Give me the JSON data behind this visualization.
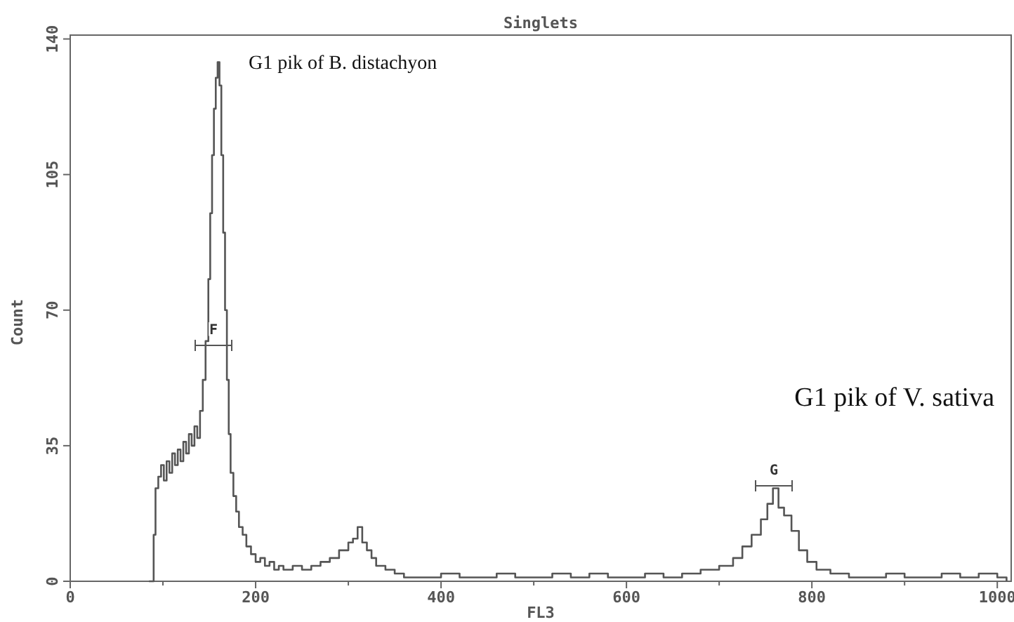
{
  "chart_data": {
    "type": "step",
    "title": "Singlets",
    "xlabel": "FL3",
    "ylabel": "Count",
    "xlim": [
      0,
      1015
    ],
    "ylim": [
      0,
      141
    ],
    "xticks": [
      0,
      {
        "value": 100,
        "label": null
      },
      200,
      {
        "value": 300,
        "label": null
      },
      400,
      {
        "value": 500,
        "label": null
      },
      600,
      {
        "value": 700,
        "label": null
      },
      800,
      {
        "value": 900,
        "label": null
      },
      1000
    ],
    "yticks": [
      0,
      35,
      70,
      105,
      140
    ],
    "grid": false,
    "series": [
      {
        "color": "#555555",
        "x": [
          85,
          88,
          90,
          92,
          95,
          98,
          101,
          104,
          107,
          110,
          113,
          116,
          119,
          122,
          125,
          128,
          131,
          134,
          137,
          140,
          143,
          146,
          149,
          151,
          153,
          155,
          157,
          159,
          161,
          163,
          165,
          167,
          169,
          171,
          173,
          176,
          179,
          182,
          186,
          190,
          195,
          200,
          205,
          210,
          215,
          220,
          225,
          230,
          240,
          250,
          260,
          270,
          280,
          290,
          300,
          305,
          310,
          315,
          320,
          325,
          330,
          340,
          350,
          360,
          380,
          400,
          420,
          440,
          460,
          480,
          500,
          520,
          540,
          560,
          580,
          600,
          620,
          640,
          660,
          680,
          700,
          715,
          725,
          735,
          745,
          752,
          758,
          764,
          770,
          778,
          786,
          795,
          805,
          820,
          840,
          860,
          880,
          900,
          920,
          940,
          960,
          980,
          1000,
          1010
        ],
        "values": [
          0,
          0,
          12,
          24,
          27,
          30,
          26,
          31,
          28,
          33,
          30,
          34,
          31,
          36,
          33,
          38,
          35,
          40,
          37,
          44,
          52,
          62,
          78,
          95,
          110,
          122,
          130,
          134,
          128,
          110,
          90,
          70,
          52,
          38,
          28,
          22,
          18,
          14,
          12,
          9,
          7,
          5,
          6,
          4,
          5,
          3,
          4,
          3,
          4,
          3,
          4,
          5,
          6,
          8,
          10,
          11,
          14,
          10,
          8,
          6,
          4,
          3,
          2,
          1,
          1,
          2,
          1,
          1,
          2,
          1,
          1,
          2,
          1,
          2,
          1,
          1,
          2,
          1,
          2,
          3,
          4,
          6,
          9,
          12,
          16,
          20,
          24,
          19,
          17,
          13,
          8,
          5,
          3,
          2,
          1,
          1,
          2,
          1,
          1,
          2,
          1,
          2,
          1,
          0
        ]
      }
    ],
    "annotations": [
      "G1 pik of B. distachyon",
      "G1 pik of V. sativa",
      "F",
      "G"
    ]
  }
}
